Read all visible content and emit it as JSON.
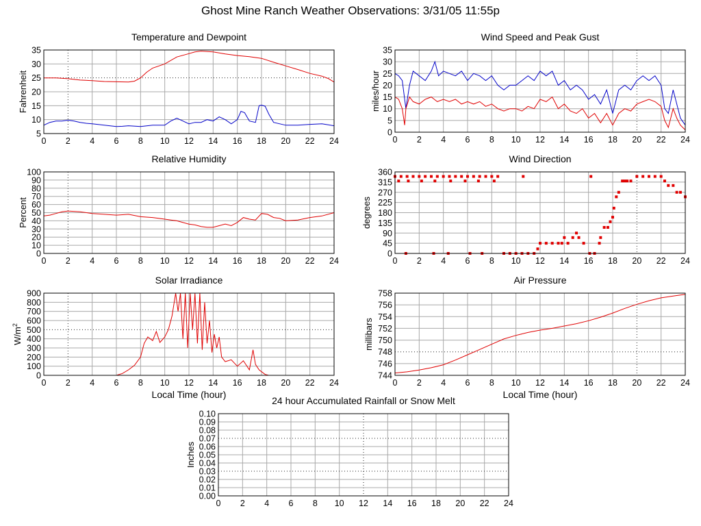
{
  "page": {
    "title": "Ghost Mine Ranch Weather Observations: 3/31/05 11:55p"
  },
  "chart_data": [
    {
      "id": "temp",
      "type": "line",
      "title": "Temperature and Dewpoint",
      "xlabel": "",
      "ylabel": "Fahrenheit",
      "xlim": [
        0,
        24
      ],
      "ylim": [
        5,
        35
      ],
      "x_ticks": [
        "0",
        "2",
        "4",
        "6",
        "8",
        "10",
        "12",
        "14",
        "16",
        "18",
        "20",
        "22",
        "24"
      ],
      "y_ticks": [
        "5",
        "10",
        "15",
        "20",
        "25",
        "30",
        "35"
      ],
      "series": [
        {
          "name": "Temperature",
          "color": "#e00000",
          "x": [
            0,
            1,
            2,
            3,
            4,
            5,
            6,
            7,
            7.5,
            8,
            8.5,
            9,
            10,
            11,
            12,
            12.5,
            13,
            14,
            15,
            16,
            17,
            18,
            19,
            20,
            21,
            22,
            23,
            23.5,
            24
          ],
          "y": [
            25,
            25,
            24.7,
            24.2,
            24,
            23.7,
            23.6,
            23.5,
            23.8,
            25,
            27,
            28.5,
            30,
            32.5,
            33.7,
            34.3,
            34.6,
            34.3,
            33.6,
            33,
            32.6,
            32,
            30.6,
            29.3,
            28,
            26.6,
            25.6,
            24.8,
            23.5
          ]
        },
        {
          "name": "Dewpoint",
          "color": "#0000c8",
          "x": [
            0,
            0.5,
            1,
            1.5,
            2,
            2.5,
            3,
            3.5,
            4,
            5,
            6,
            6.5,
            7,
            8,
            9,
            10,
            10.5,
            11,
            11.5,
            12,
            12.5,
            13,
            13.5,
            14,
            14.5,
            15,
            15.5,
            16,
            16.3,
            16.6,
            17,
            17.5,
            17.8,
            18,
            18.3,
            18.6,
            19,
            20,
            21,
            22,
            23,
            24
          ],
          "y": [
            8,
            9,
            9.5,
            9.5,
            9.8,
            9.5,
            9,
            8.7,
            8.5,
            8,
            7.5,
            7.6,
            7.8,
            7.5,
            8,
            8,
            9.5,
            10.5,
            9.5,
            8.5,
            9,
            9,
            10,
            9.5,
            11,
            10,
            8.5,
            10,
            13,
            12.5,
            9.5,
            9,
            15,
            15.2,
            14.8,
            12,
            9,
            8,
            8,
            8.3,
            8.5,
            7.8
          ]
        }
      ]
    },
    {
      "id": "wind",
      "type": "line",
      "title": "Wind Speed and Peak Gust",
      "xlabel": "",
      "ylabel": "miles/hour",
      "xlim": [
        0,
        24
      ],
      "ylim": [
        0,
        35
      ],
      "x_ticks": [
        "0",
        "2",
        "4",
        "6",
        "8",
        "10",
        "12",
        "14",
        "16",
        "18",
        "20",
        "22",
        "24"
      ],
      "y_ticks": [
        "0",
        "5",
        "10",
        "15",
        "20",
        "25",
        "30",
        "35"
      ],
      "series": [
        {
          "name": "Peak Gust",
          "color": "#0000c8",
          "x": [
            0,
            0.3,
            0.6,
            0.9,
            1.2,
            1.5,
            2,
            2.5,
            3,
            3.3,
            3.6,
            4,
            4.5,
            5,
            5.5,
            6,
            6.5,
            7,
            7.5,
            8,
            8.5,
            9,
            9.5,
            10,
            10.5,
            11,
            11.5,
            12,
            12.5,
            13,
            13.5,
            14,
            14.5,
            15,
            15.5,
            16,
            16.5,
            17,
            17.5,
            18,
            18.5,
            19,
            19.5,
            20,
            20.5,
            21,
            21.5,
            22,
            22.3,
            22.6,
            23,
            23.3,
            23.6,
            24
          ],
          "y": [
            25,
            24,
            22,
            10,
            20,
            26,
            24,
            22,
            26,
            30,
            24,
            26,
            25,
            24,
            26,
            22,
            25,
            24,
            22,
            24,
            20,
            18,
            20,
            20,
            22,
            24,
            22,
            26,
            24,
            26,
            20,
            22,
            18,
            20,
            18,
            14,
            16,
            12,
            18,
            8,
            18,
            20,
            18,
            22,
            24,
            22,
            24,
            20,
            10,
            8,
            18,
            12,
            6,
            3
          ]
        },
        {
          "name": "Wind Speed",
          "color": "#e00000",
          "x": [
            0,
            0.3,
            0.6,
            0.8,
            0.9,
            1.2,
            1.5,
            2,
            2.5,
            3,
            3.5,
            4,
            4.5,
            5,
            5.5,
            6,
            6.5,
            7,
            7.5,
            8,
            8.5,
            9,
            9.5,
            10,
            10.5,
            11,
            11.5,
            12,
            12.5,
            13,
            13.5,
            14,
            14.5,
            15,
            15.5,
            16,
            16.5,
            17,
            17.5,
            18,
            18.5,
            19,
            19.5,
            20,
            20.5,
            21,
            21.5,
            22,
            22.3,
            22.6,
            23,
            23.3,
            23.6,
            24
          ],
          "y": [
            15,
            14,
            10,
            3,
            10,
            15,
            13,
            12,
            14,
            15,
            13,
            14,
            13,
            14,
            12,
            13,
            12,
            13,
            11,
            12,
            10,
            9,
            10,
            10,
            9,
            11,
            10,
            14,
            13,
            15,
            10,
            12,
            9,
            8,
            10,
            6,
            8,
            4,
            8,
            3,
            8,
            10,
            9,
            12,
            13,
            14,
            13,
            11,
            5,
            2,
            10,
            6,
            3,
            1
          ]
        }
      ]
    },
    {
      "id": "rh",
      "type": "line",
      "title": "Relative Humidity",
      "xlabel": "",
      "ylabel": "Percent",
      "xlim": [
        0,
        24
      ],
      "ylim": [
        0,
        100
      ],
      "x_ticks": [
        "0",
        "2",
        "4",
        "6",
        "8",
        "10",
        "12",
        "14",
        "16",
        "18",
        "20",
        "22",
        "24"
      ],
      "y_ticks": [
        "0",
        "10",
        "20",
        "30",
        "40",
        "50",
        "60",
        "70",
        "80",
        "90",
        "100"
      ],
      "series": [
        {
          "name": "Relative Humidity",
          "color": "#e00000",
          "x": [
            0,
            0.5,
            1,
            1.5,
            2,
            3,
            4,
            5,
            6,
            7,
            8,
            9,
            10,
            11,
            12,
            12.5,
            13,
            13.5,
            14,
            14.5,
            15,
            15.5,
            16,
            16.5,
            17,
            17.5,
            18,
            18.5,
            19,
            19.5,
            20,
            21,
            22,
            23,
            24
          ],
          "y": [
            46,
            47,
            49,
            51,
            52,
            51,
            49,
            48,
            47,
            48,
            45,
            44,
            42,
            40,
            36,
            35,
            33,
            32,
            32,
            34,
            36,
            34,
            38,
            44,
            42,
            41,
            49,
            48,
            44,
            43,
            40,
            41,
            44,
            46,
            50
          ]
        }
      ]
    },
    {
      "id": "wdir",
      "type": "scatter",
      "title": "Wind Direction",
      "xlabel": "",
      "ylabel": "degrees",
      "xlim": [
        0,
        24
      ],
      "ylim": [
        0,
        360
      ],
      "x_ticks": [
        "0",
        "2",
        "4",
        "6",
        "8",
        "10",
        "12",
        "14",
        "16",
        "18",
        "20",
        "22",
        "24"
      ],
      "y_ticks": [
        "0",
        "45",
        "90",
        "135",
        "180",
        "225",
        "270",
        "315",
        "360"
      ],
      "series": [
        {
          "name": "Wind Direction",
          "color": "#e00000",
          "x": [
            0,
            0.5,
            1,
            1.5,
            2,
            2.5,
            3,
            3.5,
            4,
            4.5,
            5,
            5.5,
            6,
            6.5,
            7,
            7.5,
            8,
            8.5,
            0.3,
            1.1,
            2.2,
            3.3,
            4.6,
            5.8,
            6.9,
            8.2,
            0.9,
            3.2,
            4.4,
            6.2,
            7.2,
            9,
            9.5,
            10,
            10.5,
            11,
            11.5,
            11.8,
            12,
            12.5,
            13,
            13.5,
            13.8,
            14,
            14.3,
            14.7,
            15,
            15.2,
            15.6,
            16.1,
            16.5,
            16.9,
            17,
            17.3,
            17.6,
            17.8,
            18,
            18.1,
            18.3,
            18.5,
            18.8,
            19,
            19.2,
            19.5,
            20,
            20.5,
            21,
            21.5,
            22,
            22.3,
            22.6,
            23,
            23.3,
            23.6,
            24,
            16.2,
            10.6
          ],
          "y": [
            340,
            340,
            340,
            340,
            340,
            340,
            340,
            340,
            340,
            340,
            340,
            340,
            340,
            340,
            340,
            340,
            340,
            340,
            320,
            320,
            320,
            320,
            320,
            320,
            320,
            320,
            0,
            0,
            0,
            0,
            0,
            0,
            0,
            0,
            0,
            0,
            0,
            20,
            45,
            45,
            45,
            45,
            45,
            70,
            45,
            70,
            90,
            70,
            45,
            0,
            0,
            45,
            70,
            115,
            115,
            140,
            160,
            200,
            250,
            270,
            320,
            320,
            320,
            320,
            340,
            340,
            340,
            340,
            340,
            320,
            300,
            300,
            270,
            270,
            250,
            340,
            340
          ]
        }
      ]
    },
    {
      "id": "solar",
      "type": "line",
      "title": "Solar Irradiance",
      "xlabel": "Local Time (hour)",
      "ylabel": "W/m",
      "ylabel_sup": "2",
      "xlim": [
        0,
        24
      ],
      "ylim": [
        0,
        900
      ],
      "x_ticks": [
        "0",
        "2",
        "4",
        "6",
        "8",
        "10",
        "12",
        "14",
        "16",
        "18",
        "20",
        "22",
        "24"
      ],
      "y_ticks": [
        "0",
        "100",
        "200",
        "300",
        "400",
        "500",
        "600",
        "700",
        "800",
        "900"
      ],
      "series": [
        {
          "name": "Solar Irradiance",
          "color": "#e00000",
          "x": [
            0,
            6,
            6.5,
            7,
            7.5,
            8,
            8.3,
            8.6,
            9,
            9.3,
            9.6,
            10,
            10.3,
            10.6,
            10.9,
            11.1,
            11.3,
            11.5,
            11.7,
            11.9,
            12.1,
            12.3,
            12.5,
            12.7,
            12.9,
            13.1,
            13.3,
            13.5,
            13.7,
            13.9,
            14.1,
            14.3,
            14.5,
            14.7,
            15,
            15.5,
            16,
            16.5,
            17,
            17.3,
            17.5,
            17.8,
            18,
            18.3,
            18.6,
            19,
            24
          ],
          "y": [
            0,
            0,
            20,
            60,
            110,
            200,
            350,
            420,
            380,
            480,
            360,
            420,
            500,
            650,
            900,
            700,
            900,
            400,
            900,
            300,
            900,
            500,
            900,
            350,
            900,
            280,
            800,
            350,
            600,
            250,
            450,
            300,
            420,
            200,
            150,
            170,
            100,
            160,
            60,
            280,
            120,
            60,
            40,
            10,
            0,
            0,
            0
          ]
        }
      ]
    },
    {
      "id": "pressure",
      "type": "line",
      "title": "Air Pressure",
      "xlabel": "Local Time (hour)",
      "ylabel": "millibars",
      "xlim": [
        0,
        24
      ],
      "ylim": [
        744,
        758
      ],
      "x_ticks": [
        "0",
        "2",
        "4",
        "6",
        "8",
        "10",
        "12",
        "14",
        "16",
        "18",
        "20",
        "22",
        "24"
      ],
      "y_ticks": [
        "744",
        "746",
        "748",
        "750",
        "752",
        "754",
        "756",
        "758"
      ],
      "series": [
        {
          "name": "Air Pressure",
          "color": "#e00000",
          "x": [
            0,
            1,
            2,
            3,
            4,
            5,
            6,
            7,
            8,
            9,
            10,
            11,
            12,
            13,
            14,
            15,
            16,
            17,
            18,
            19,
            20,
            21,
            22,
            23,
            24
          ],
          "y": [
            744.4,
            744.6,
            744.9,
            745.3,
            745.8,
            746.6,
            747.5,
            748.4,
            749.3,
            750.2,
            750.8,
            751.3,
            751.7,
            752.0,
            752.4,
            752.8,
            753.3,
            753.9,
            754.6,
            755.4,
            756.1,
            756.7,
            757.2,
            757.5,
            757.8
          ]
        }
      ]
    },
    {
      "id": "rain",
      "type": "line",
      "title": "24 hour Accumulated Rainfall or Snow Melt",
      "xlabel": "",
      "ylabel": "Inches",
      "xlim": [
        0,
        24
      ],
      "ylim": [
        0,
        0.1
      ],
      "x_ticks": [
        "0",
        "2",
        "4",
        "6",
        "8",
        "10",
        "12",
        "14",
        "16",
        "18",
        "20",
        "22",
        "24"
      ],
      "y_ticks": [
        "0.00",
        "0.01",
        "0.02",
        "0.03",
        "0.04",
        "0.05",
        "0.06",
        "0.07",
        "0.08",
        "0.09",
        "0.10"
      ],
      "series": [
        {
          "name": "Accumulated Rainfall",
          "color": "#e00000",
          "x": [
            0,
            24
          ],
          "y": [
            0,
            0
          ]
        }
      ]
    }
  ]
}
